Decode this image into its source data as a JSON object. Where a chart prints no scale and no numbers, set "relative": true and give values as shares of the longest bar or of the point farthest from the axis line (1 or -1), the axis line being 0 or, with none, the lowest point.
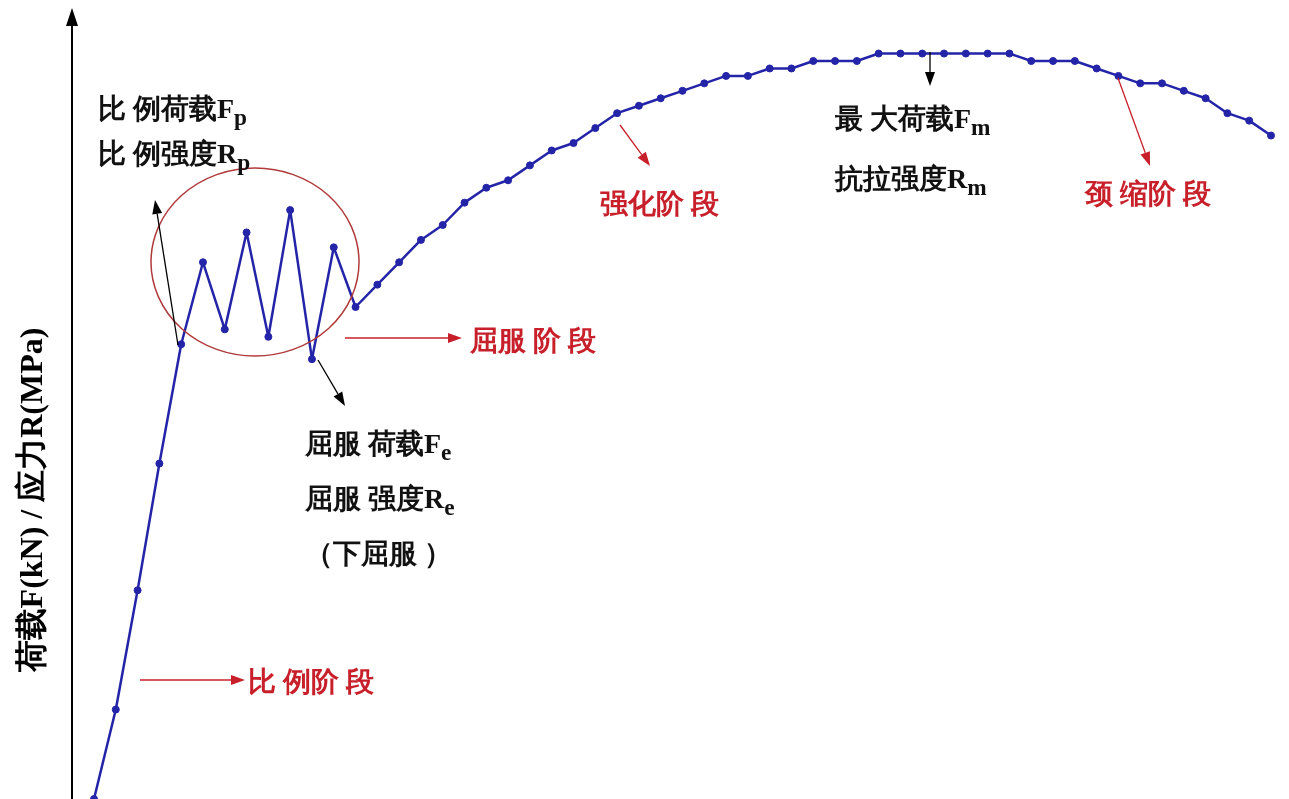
{
  "chart_data": {
    "type": "line",
    "relative": true,
    "ylabel": "荷载F(kN) / 应力R(MPa)",
    "marker": "circle",
    "categories": [
      null,
      null,
      null,
      null,
      null,
      null,
      null,
      null,
      null,
      null,
      null,
      null,
      null,
      null,
      null,
      null,
      null,
      null,
      null,
      null,
      null,
      null,
      null,
      null,
      null,
      null,
      null,
      null,
      null,
      null,
      null,
      null,
      null,
      null,
      null,
      null,
      null,
      null,
      null,
      null,
      null,
      null,
      null,
      null,
      null,
      null,
      null,
      null,
      null,
      null,
      null,
      null,
      null,
      null,
      null
    ],
    "series": [
      {
        "color": "#2424a8",
        "values": [
          0,
          0.12,
          0.28,
          0.45,
          0.61,
          0.72,
          0.63,
          0.76,
          0.62,
          0.79,
          0.59,
          0.74,
          0.66,
          0.69,
          0.72,
          0.75,
          0.77,
          0.8,
          0.82,
          0.83,
          0.85,
          0.87,
          0.88,
          0.9,
          0.92,
          0.93,
          0.94,
          0.95,
          0.96,
          0.97,
          0.97,
          0.98,
          0.98,
          0.99,
          0.99,
          0.99,
          1,
          1,
          1,
          1,
          1,
          1,
          1,
          0.99,
          0.99,
          0.99,
          0.98,
          0.97,
          0.96,
          0.96,
          0.95,
          0.94,
          0.92,
          0.91,
          0.89
        ]
      }
    ],
    "annotations": [
      "比 例荷载F$_{p}$",
      "比 例强度R$_{p}$",
      "屈服 荷载F$_{e}$",
      "屈服 强度R$_{e}$",
      "（下屈服 ）",
      "最 大荷载F$_{m}$",
      "抗拉强度R$_{m}$",
      "强化阶 段",
      "颈 缩阶 段",
      "屈服 阶 段",
      "比 例阶 段"
    ]
  }
}
